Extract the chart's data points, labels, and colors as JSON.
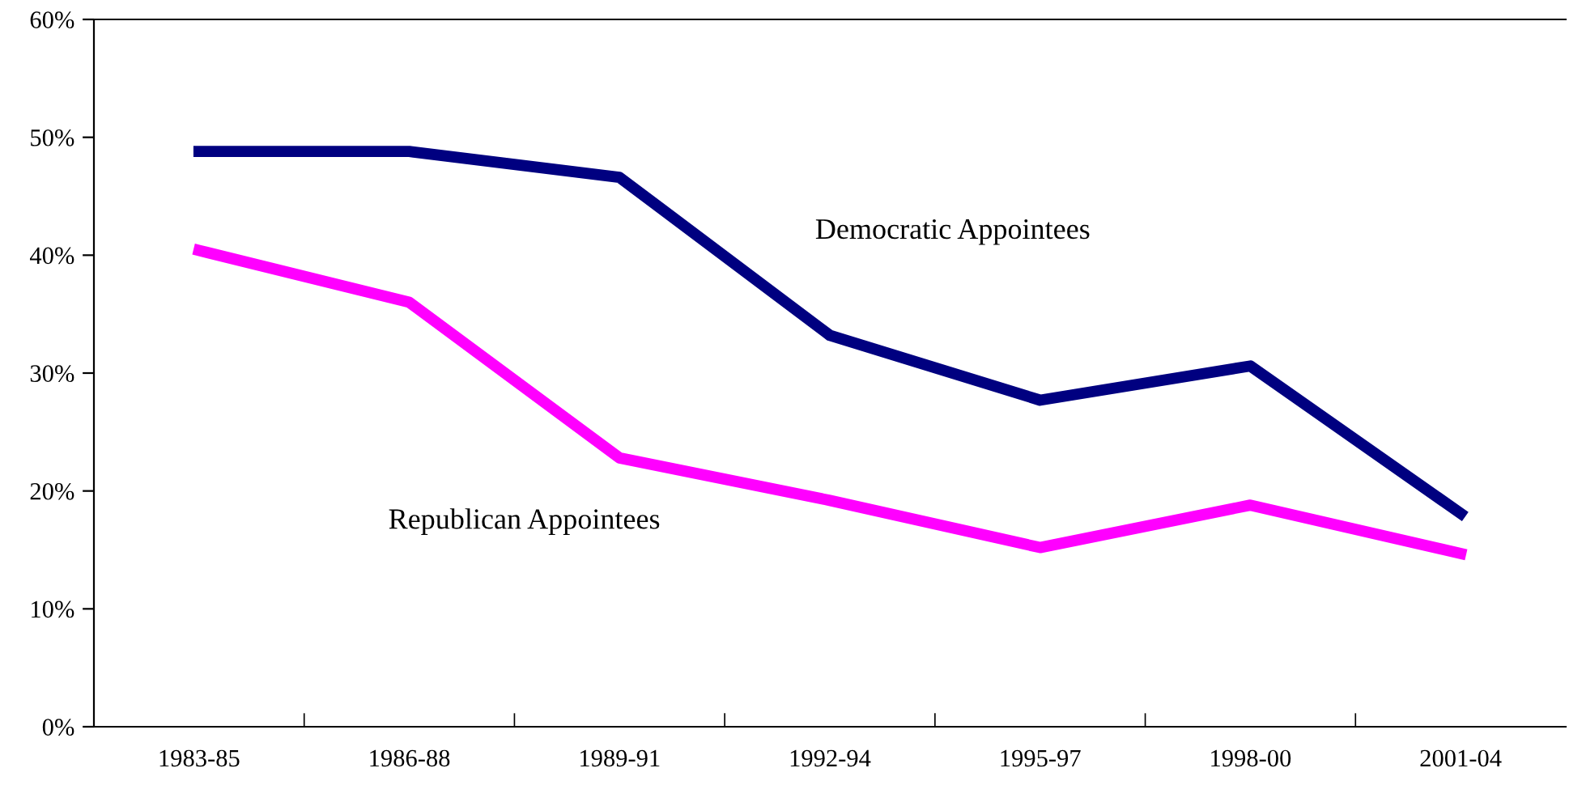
{
  "chart_data": {
    "type": "line",
    "categories": [
      "1983-85",
      "1986-88",
      "1989-91",
      "1992-94",
      "1995-97",
      "1998-00",
      "2001-04"
    ],
    "series": [
      {
        "name": "Democratic Appointees",
        "color": "#000080",
        "values": [
          48.8,
          48.8,
          46.6,
          33.2,
          27.7,
          30.6,
          18.1
        ]
      },
      {
        "name": "Republican Appointees",
        "color": "#ff00ff",
        "values": [
          40.4,
          36.0,
          22.8,
          19.2,
          15.2,
          18.8,
          14.7
        ]
      }
    ],
    "ylim": [
      0,
      60
    ],
    "yticks": [
      {
        "value": 0,
        "label": "0%"
      },
      {
        "value": 10,
        "label": "10%"
      },
      {
        "value": 20,
        "label": "20%"
      },
      {
        "value": 30,
        "label": "30%"
      },
      {
        "value": 40,
        "label": "40%"
      },
      {
        "value": 50,
        "label": "50%"
      },
      {
        "value": 60,
        "label": "60%"
      }
    ],
    "grid": false,
    "legend": false,
    "marker": "none",
    "line_style": "solid"
  }
}
